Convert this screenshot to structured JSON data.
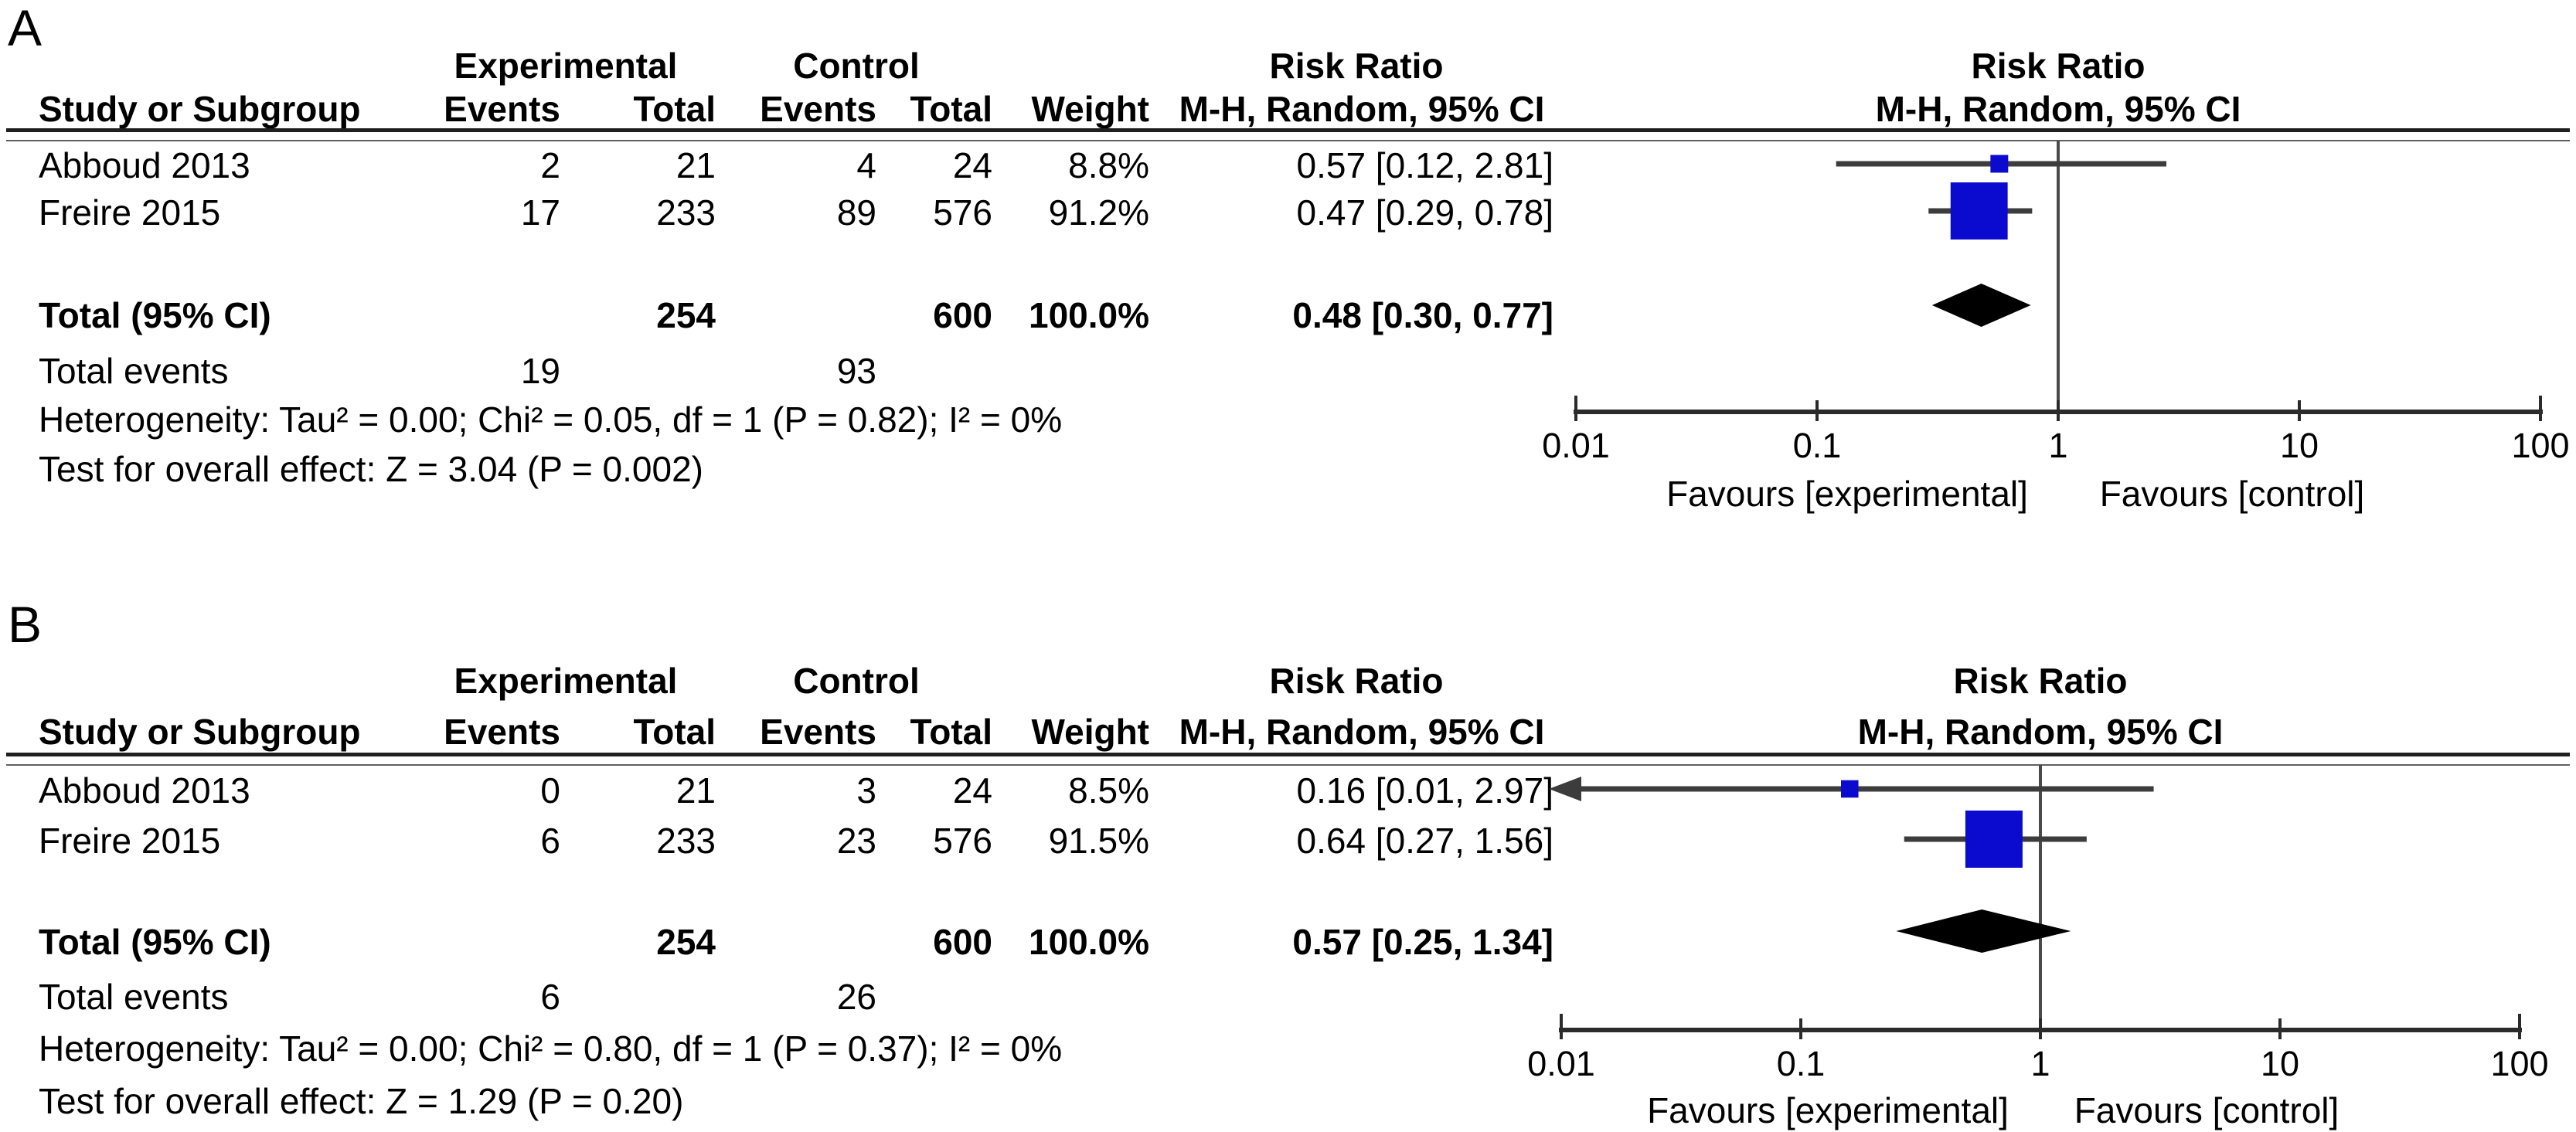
{
  "colors": {
    "square_blue": "#0b0bcf",
    "diamond_black": "#000000",
    "ci_line": "#3c3c3c",
    "axis_line": "#2b2b2b",
    "center_line": "#4a4a4a",
    "text": "#000000"
  },
  "panels": [
    {
      "label": "A",
      "group_headers": {
        "experimental": "Experimental",
        "control": "Control",
        "risk_ratio_left": "Risk Ratio",
        "risk_ratio_right": "Risk Ratio"
      },
      "column_headers": {
        "study": "Study or Subgroup",
        "events_exp": "Events",
        "total_exp": "Total",
        "events_ctl": "Events",
        "total_ctl": "Total",
        "weight": "Weight",
        "mh_left": "M-H, Random, 95% CI",
        "mh_right": "M-H, Random, 95% CI"
      },
      "studies": [
        {
          "study": "Abboud 2013",
          "events_exp": "2",
          "total_exp": "21",
          "events_ctl": "4",
          "total_ctl": "24",
          "weight": "8.8%",
          "rr_text": "0.57 [0.12, 2.81]"
        },
        {
          "study": "Freire 2015",
          "events_exp": "17",
          "total_exp": "233",
          "events_ctl": "89",
          "total_ctl": "576",
          "weight": "91.2%",
          "rr_text": "0.47 [0.29, 0.78]"
        }
      ],
      "total": {
        "label": "Total (95% CI)",
        "total_exp": "254",
        "total_ctl": "600",
        "weight": "100.0%",
        "rr_text": "0.48 [0.30, 0.77]"
      },
      "total_events": {
        "label": "Total events",
        "exp": "19",
        "ctl": "93"
      },
      "heterogeneity": "Heterogeneity: Tau² = 0.00; Chi² = 0.05, df = 1 (P = 0.82); I² = 0%",
      "overall_effect": "Test for overall effect: Z = 3.04 (P = 0.002)",
      "axis": {
        "tick_labels": [
          "0.01",
          "0.1",
          "1",
          "10",
          "100"
        ],
        "favours_left": "Favours [experimental]",
        "favours_right": "Favours [control]"
      }
    },
    {
      "label": "B",
      "group_headers": {
        "experimental": "Experimental",
        "control": "Control",
        "risk_ratio_left": "Risk Ratio",
        "risk_ratio_right": "Risk Ratio"
      },
      "column_headers": {
        "study": "Study or Subgroup",
        "events_exp": "Events",
        "total_exp": "Total",
        "events_ctl": "Events",
        "total_ctl": "Total",
        "weight": "Weight",
        "mh_left": "M-H, Random, 95% CI",
        "mh_right": "M-H, Random, 95% CI"
      },
      "studies": [
        {
          "study": "Abboud 2013",
          "events_exp": "0",
          "total_exp": "21",
          "events_ctl": "3",
          "total_ctl": "24",
          "weight": "8.5%",
          "rr_text": "0.16 [0.01, 2.97]"
        },
        {
          "study": "Freire 2015",
          "events_exp": "6",
          "total_exp": "233",
          "events_ctl": "23",
          "total_ctl": "576",
          "weight": "91.5%",
          "rr_text": "0.64 [0.27, 1.56]"
        }
      ],
      "total": {
        "label": "Total (95% CI)",
        "total_exp": "254",
        "total_ctl": "600",
        "weight": "100.0%",
        "rr_text": "0.57 [0.25, 1.34]"
      },
      "total_events": {
        "label": "Total events",
        "exp": "6",
        "ctl": "26"
      },
      "heterogeneity": "Heterogeneity: Tau² = 0.00; Chi² = 0.80, df = 1 (P = 0.37); I² = 0%",
      "overall_effect": "Test for overall effect: Z = 1.29 (P = 0.20)",
      "axis": {
        "tick_labels": [
          "0.01",
          "0.1",
          "1",
          "10",
          "100"
        ],
        "favours_left": "Favours [experimental]",
        "favours_right": "Favours [control]"
      }
    }
  ],
  "chart_data": [
    {
      "type": "forest",
      "panel": "A",
      "effect_measure": "Risk Ratio",
      "method": "M-H, Random, 95% CI",
      "x_axis": {
        "scale": "log",
        "ticks": [
          0.01,
          0.1,
          1,
          10,
          100
        ],
        "min": 0.01,
        "max": 100,
        "label_left": "Favours [experimental]",
        "label_right": "Favours [control]"
      },
      "studies": [
        {
          "name": "Abboud 2013",
          "events_exp": 2,
          "total_exp": 21,
          "events_ctl": 4,
          "total_ctl": 24,
          "weight_pct": 8.8,
          "rr": 0.57,
          "ci": [
            0.12,
            2.81
          ]
        },
        {
          "name": "Freire 2015",
          "events_exp": 17,
          "total_exp": 233,
          "events_ctl": 89,
          "total_ctl": 576,
          "weight_pct": 91.2,
          "rr": 0.47,
          "ci": [
            0.29,
            0.78
          ]
        }
      ],
      "total": {
        "rr": 0.48,
        "ci": [
          0.3,
          0.77
        ],
        "total_exp": 254,
        "total_ctl": 600,
        "weight_pct": 100.0,
        "events_exp": 19,
        "events_ctl": 93
      },
      "heterogeneity": {
        "tau2": 0.0,
        "chi2": 0.05,
        "df": 1,
        "p": 0.82,
        "i2_pct": 0
      },
      "overall_effect": {
        "z": 3.04,
        "p": 0.002
      }
    },
    {
      "type": "forest",
      "panel": "B",
      "effect_measure": "Risk Ratio",
      "method": "M-H, Random, 95% CI",
      "x_axis": {
        "scale": "log",
        "ticks": [
          0.01,
          0.1,
          1,
          10,
          100
        ],
        "min": 0.01,
        "max": 100,
        "label_left": "Favours [experimental]",
        "label_right": "Favours [control]"
      },
      "studies": [
        {
          "name": "Abboud 2013",
          "events_exp": 0,
          "total_exp": 21,
          "events_ctl": 3,
          "total_ctl": 24,
          "weight_pct": 8.5,
          "rr": 0.16,
          "ci": [
            0.01,
            2.97
          ]
        },
        {
          "name": "Freire 2015",
          "events_exp": 6,
          "total_exp": 233,
          "events_ctl": 23,
          "total_ctl": 576,
          "weight_pct": 91.5,
          "rr": 0.64,
          "ci": [
            0.27,
            1.56
          ]
        }
      ],
      "total": {
        "rr": 0.57,
        "ci": [
          0.25,
          1.34
        ],
        "total_exp": 254,
        "total_ctl": 600,
        "weight_pct": 100.0,
        "events_exp": 6,
        "events_ctl": 26
      },
      "heterogeneity": {
        "tau2": 0.0,
        "chi2": 0.8,
        "df": 1,
        "p": 0.37,
        "i2_pct": 0
      },
      "overall_effect": {
        "z": 1.29,
        "p": 0.2
      }
    }
  ]
}
